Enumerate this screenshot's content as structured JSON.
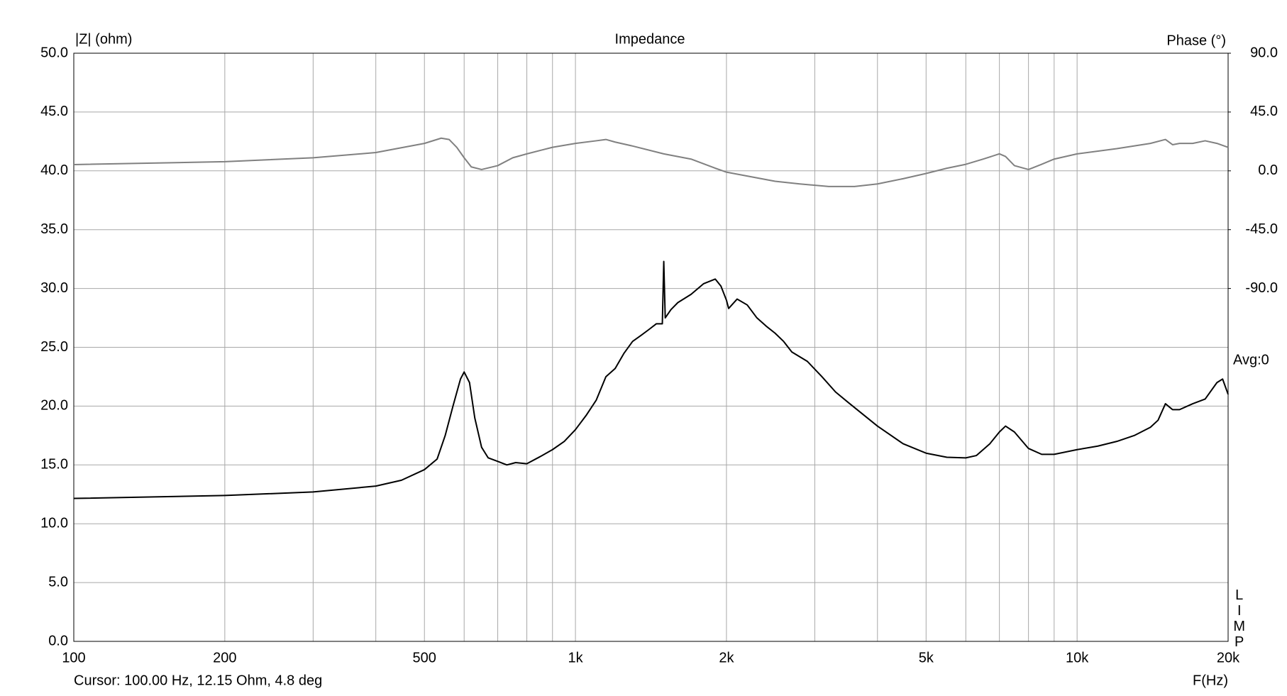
{
  "chart_data": {
    "type": "line",
    "title": "Impedance",
    "y_label": "|Z| (ohm)",
    "y2_label": "Phase (°)",
    "x_label": "F(Hz)",
    "cursor": "Cursor: 100.00 Hz, 12.15 Ohm, 4.8 deg",
    "average": "Avg:0",
    "side_label": "LIMP",
    "xscale": "log",
    "grid": true,
    "xlim": [
      100,
      20000
    ],
    "xticks": [
      100,
      200,
      500,
      {
        "value": 1000,
        "label": "1k"
      },
      {
        "value": 2000,
        "label": "2k"
      },
      {
        "value": 5000,
        "label": "5k"
      },
      {
        "value": 10000,
        "label": "10k"
      },
      {
        "value": 20000,
        "label": "20k"
      }
    ],
    "xgrid": [
      300,
      400,
      600,
      700,
      800,
      900,
      3000,
      4000,
      6000,
      7000,
      8000,
      9000
    ],
    "ylim": [
      0,
      50
    ],
    "yticks": [
      {
        "value": 0,
        "label": "0.0"
      },
      {
        "value": 5,
        "label": "5.0"
      },
      {
        "value": 10,
        "label": "10.0"
      },
      {
        "value": 15,
        "label": "15.0"
      },
      {
        "value": 20,
        "label": "20.0"
      },
      {
        "value": 25,
        "label": "25.0"
      },
      {
        "value": 30,
        "label": "30.0"
      },
      {
        "value": 35,
        "label": "35.0"
      },
      {
        "value": 40,
        "label": "40.0"
      },
      {
        "value": 45,
        "label": "45.0"
      },
      {
        "value": 50,
        "label": "50.0"
      }
    ],
    "y2lim": [
      -360,
      90
    ],
    "y2ticks": [
      {
        "value": 90,
        "label": "90.0"
      },
      {
        "value": 45,
        "label": "45.0"
      },
      {
        "value": 0,
        "label": "0.0"
      },
      {
        "value": -45,
        "label": "-45.0"
      },
      {
        "value": -90,
        "label": "-90.0"
      }
    ],
    "series": [
      {
        "color": "#000000",
        "axis": "y",
        "x": [
          100,
          200,
          300,
          400,
          450,
          500,
          530,
          550,
          570,
          590,
          600,
          615,
          630,
          650,
          670,
          700,
          730,
          760,
          800,
          850,
          900,
          950,
          1000,
          1050,
          1100,
          1150,
          1200,
          1250,
          1300,
          1350,
          1400,
          1450,
          1490,
          1500,
          1510,
          1550,
          1600,
          1700,
          1800,
          1900,
          1950,
          2000,
          2020,
          2100,
          2200,
          2300,
          2400,
          2500,
          2600,
          2700,
          2900,
          3100,
          3300,
          3500,
          4000,
          4500,
          5000,
          5500,
          6000,
          6300,
          6700,
          7000,
          7200,
          7500,
          8000,
          8500,
          9000,
          10000,
          11000,
          12000,
          13000,
          14000,
          14500,
          15000,
          15500,
          16000,
          17000,
          18000,
          19000,
          19500,
          20000
        ],
        "values": [
          12.15,
          12.4,
          12.7,
          13.2,
          13.7,
          14.6,
          15.5,
          17.5,
          20,
          22.3,
          22.9,
          22,
          19,
          16.5,
          15.6,
          15.3,
          15.0,
          15.2,
          15.1,
          15.7,
          16.3,
          17,
          18,
          19.2,
          20.5,
          22.5,
          23.2,
          24.5,
          25.5,
          26,
          26.5,
          27.0,
          27.0,
          32.3,
          27.5,
          28.2,
          28.8,
          29.5,
          30.4,
          30.8,
          30.2,
          29.0,
          28.3,
          29.1,
          28.6,
          27.5,
          26.8,
          26.2,
          25.5,
          24.6,
          23.8,
          22.5,
          21.2,
          20.3,
          18.3,
          16.8,
          16.0,
          15.65,
          15.6,
          15.8,
          16.8,
          17.8,
          18.3,
          17.8,
          16.4,
          15.9,
          15.9,
          16.3,
          16.6,
          17.0,
          17.5,
          18.2,
          18.8,
          20.2,
          19.7,
          19.7,
          20.2,
          20.6,
          22.0,
          22.3,
          21.0
        ]
      },
      {
        "color": "#808080",
        "axis": "y2",
        "x": [
          100,
          200,
          300,
          400,
          500,
          540,
          560,
          580,
          600,
          620,
          650,
          700,
          750,
          800,
          900,
          1000,
          1100,
          1150,
          1200,
          1300,
          1500,
          1700,
          1900,
          2000,
          2200,
          2500,
          2800,
          3200,
          3600,
          4000,
          4500,
          5000,
          5500,
          6000,
          6500,
          7000,
          7200,
          7500,
          8000,
          8500,
          9000,
          10000,
          12000,
          14000,
          15000,
          15500,
          16000,
          17000,
          18000,
          19000,
          20000
        ],
        "values": [
          4.8,
          7,
          10,
          14,
          21,
          25,
          24,
          18,
          10,
          3,
          1,
          4,
          10,
          13,
          18,
          21,
          23,
          24,
          22,
          19,
          13,
          9,
          2,
          -1,
          -4,
          -8,
          -10,
          -12,
          -12,
          -10,
          -6,
          -2,
          2,
          5,
          9,
          13,
          11,
          4,
          1,
          5,
          9,
          13,
          17,
          21,
          24,
          20,
          21,
          21,
          23,
          21,
          18
        ]
      }
    ]
  }
}
